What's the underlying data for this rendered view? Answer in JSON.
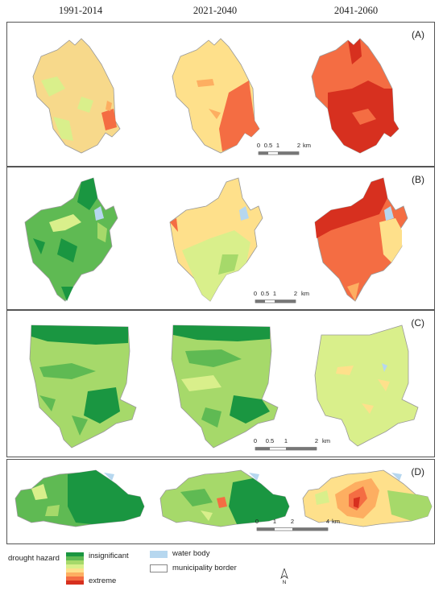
{
  "columns": [
    "1991-2014",
    "2021-2040",
    "2041-2060"
  ],
  "panels": [
    {
      "label": "(A)",
      "scale": {
        "ticks": [
          "0",
          "0.5",
          "1",
          "2"
        ],
        "unit": "km"
      }
    },
    {
      "label": "(B)",
      "scale": {
        "ticks": [
          "0",
          "0.5",
          "1",
          "2"
        ],
        "unit": "km"
      }
    },
    {
      "label": "(C)",
      "scale": {
        "ticks": [
          "0",
          "0.5",
          "1",
          "2"
        ],
        "unit": "km"
      }
    },
    {
      "label": "(D)",
      "scale": {
        "ticks": [
          "0",
          "1",
          "2",
          "4"
        ],
        "unit": "km"
      }
    }
  ],
  "legend": {
    "title": "drought hazard",
    "low_label": "insignificant",
    "high_label": "extreme",
    "water_label": "water body",
    "border_label": "municipality border",
    "colors": [
      "#1a9641",
      "#5fba53",
      "#a6d96a",
      "#d9ef8b",
      "#fee08b",
      "#fdae61",
      "#f46d43",
      "#d7301f"
    ],
    "water_color": "#b6d7ef"
  },
  "north_arrow": {
    "label": "N"
  }
}
